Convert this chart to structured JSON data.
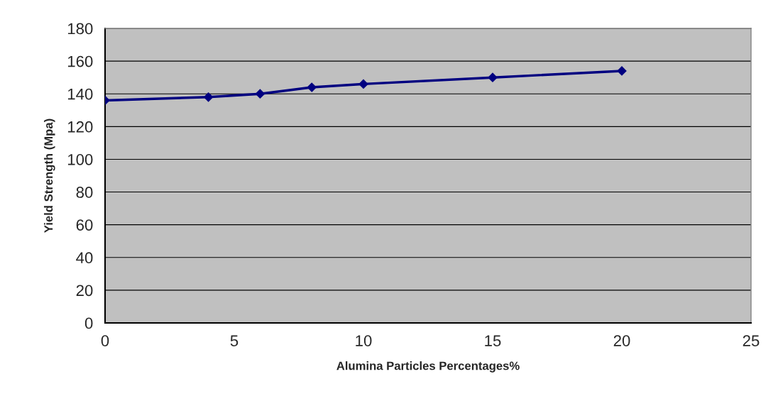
{
  "chart_data": {
    "type": "line",
    "xlabel": "Alumina Particles Percentages%",
    "ylabel": "Yield Strength (Mpa)",
    "x": [
      0,
      4,
      6,
      8,
      10,
      15,
      20
    ],
    "series": [
      {
        "color": "#000080",
        "values": [
          136,
          138,
          140,
          144,
          146,
          150,
          154
        ]
      }
    ],
    "xlim": [
      0,
      25
    ],
    "xticks": [
      0,
      5,
      10,
      15,
      20,
      25
    ],
    "ylim": [
      0,
      180
    ],
    "yticks": [
      0,
      20,
      40,
      60,
      80,
      100,
      120,
      140,
      160,
      180
    ],
    "grid": "y",
    "marker": "diamond",
    "line_style": "solid",
    "legend": false
  }
}
